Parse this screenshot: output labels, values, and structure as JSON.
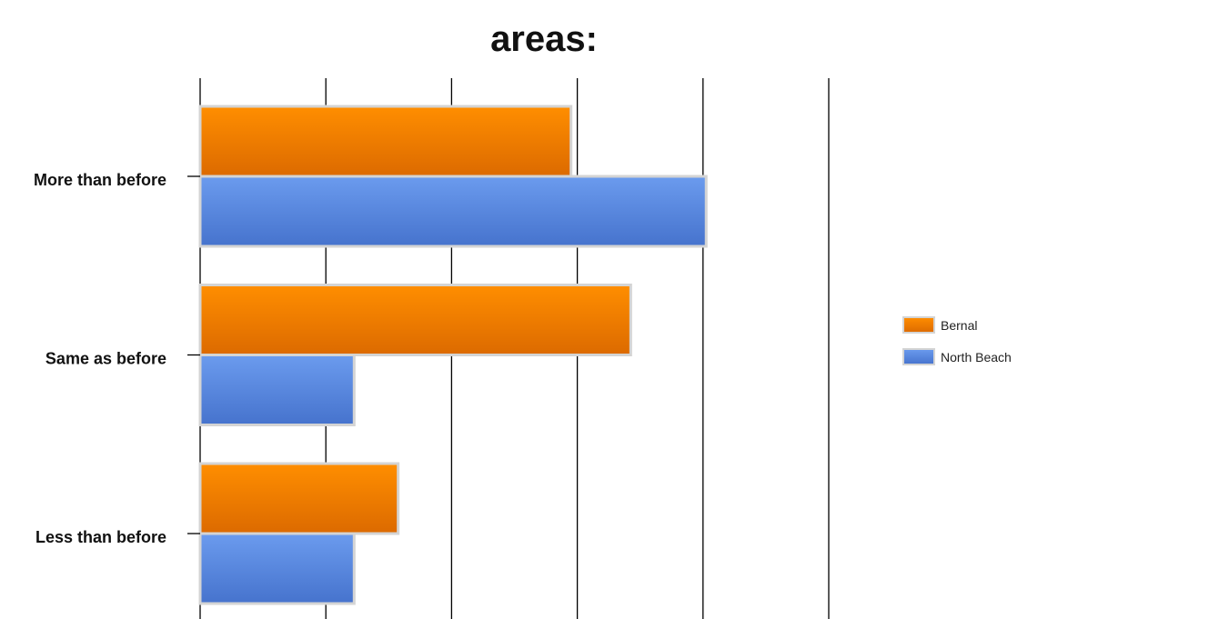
{
  "chart_data": {
    "type": "bar",
    "orientation": "horizontal",
    "title_lines": [
      "",
      "areas:"
    ],
    "categories": [
      "More than before",
      "Same as before",
      "Less than before"
    ],
    "series": [
      {
        "name": "Bernal",
        "color": "#F08000",
        "values": [
          5.9,
          6.85,
          3.15
        ]
      },
      {
        "name": "North Beach",
        "color": "#5585DA",
        "values": [
          8.05,
          2.45,
          2.45
        ]
      }
    ],
    "xlim": [
      0,
      10
    ],
    "grid": true,
    "legend_position": "right"
  }
}
